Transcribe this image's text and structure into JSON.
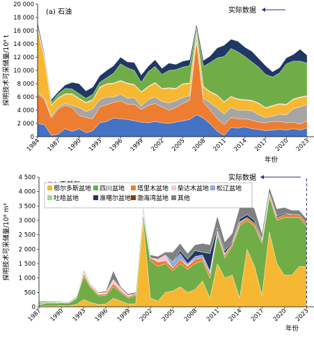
{
  "chart_data": [
    {
      "type": "area",
      "stacked": true,
      "title": "(a) 石油",
      "xlabel": "年份",
      "ylabel": "探明技术可采储量/10⁴ t",
      "x": [
        1984,
        1985,
        1986,
        1987,
        1988,
        1989,
        1990,
        1991,
        1992,
        1993,
        1994,
        1995,
        1996,
        1997,
        1998,
        1999,
        2000,
        2001,
        2002,
        2003,
        2004,
        2005,
        2006,
        2007,
        2008,
        2009,
        2010,
        2011,
        2012,
        2013,
        2014,
        2015,
        2016,
        2017,
        2018,
        2019,
        2020,
        2021,
        2022,
        2023
      ],
      "x_ticks": [
        "1984",
        "1987",
        "1990",
        "1993",
        "1996",
        "1999",
        "2002",
        "2005",
        "2008",
        "2011",
        "2014",
        "2017",
        "2020",
        "2023"
      ],
      "y_ticks": [
        "0",
        "2 000",
        "4 000",
        "6 000",
        "8 000",
        "10 000",
        "12 000",
        "14 000",
        "16 000",
        "18 000",
        "20 000"
      ],
      "ylim": [
        0,
        20000
      ],
      "xlim": [
        1984,
        2024
      ],
      "annotation": "实际数据",
      "series": [
        {
          "color": "#4472c4",
          "values": [
            2000,
            1800,
            200,
            400,
            1200,
            800,
            1200,
            600,
            900,
            2100,
            2300,
            2800,
            2700,
            2600,
            2400,
            2200,
            2100,
            2300,
            2100,
            2000,
            2200,
            2400,
            2600,
            3300,
            2800,
            1900,
            800,
            200,
            1400,
            1300,
            1500,
            1200,
            1100,
            900,
            1000,
            1100,
            1000,
            1200,
            1000,
            1300
          ]
        },
        {
          "color": "#ed7d31",
          "values": [
            4500,
            3800,
            2600,
            3800,
            3500,
            3600,
            2000,
            2300,
            1800,
            2400,
            2500,
            2400,
            2700,
            2300,
            2500,
            1900,
            2600,
            2700,
            2400,
            2000,
            2200,
            2600,
            2900,
            11000,
            2400,
            2100,
            1900,
            1600,
            1500,
            1400,
            1200,
            1300,
            1100,
            1200,
            1300,
            1200,
            1100,
            1000,
            900,
            1100
          ]
        },
        {
          "color": "#a5a5a5",
          "values": [
            200,
            200,
            300,
            300,
            300,
            300,
            1200,
            900,
            1500,
            1100,
            1200,
            800,
            1000,
            900,
            1000,
            500,
            900,
            1000,
            800,
            1100,
            1000,
            900,
            700,
            800,
            600,
            1100,
            1600,
            1600,
            1500,
            1300,
            1300,
            1400,
            1100,
            800,
            800,
            1100,
            1200,
            2000,
            2600,
            2400
          ]
        },
        {
          "color": "#f6b832",
          "values": [
            9500,
            6000,
            1600,
            1300,
            1400,
            1700,
            1300,
            1300,
            1300,
            1800,
            1900,
            2000,
            2000,
            2200,
            1900,
            2100,
            1900,
            2100,
            1900,
            2200,
            1800,
            2000,
            1800,
            600,
            1700,
            1600,
            1900,
            1800,
            1600,
            1600,
            1500,
            1500,
            1700,
            1400,
            1500,
            1500,
            1500,
            1400,
            1400,
            1300
          ]
        },
        {
          "color": "#f4c7d9",
          "values": [
            200,
            100,
            100,
            100,
            100,
            100,
            100,
            100,
            100,
            100,
            100,
            100,
            100,
            100,
            100,
            100,
            100,
            100,
            100,
            100,
            100,
            100,
            100,
            100,
            100,
            100,
            100,
            100,
            100,
            100,
            100,
            100,
            100,
            100,
            100,
            100,
            100,
            100,
            100,
            100
          ]
        },
        {
          "color": "#70ad47",
          "values": [
            300,
            200,
            400,
            600,
            800,
            700,
            700,
            600,
            800,
            700,
            900,
            1500,
            2500,
            2300,
            2100,
            1400,
            2200,
            2400,
            2100,
            2600,
            2800,
            2500,
            2600,
            600,
            3000,
            4400,
            5600,
            6800,
            7200,
            7100,
            6500,
            5800,
            5400,
            5000,
            4300,
            4600,
            6100,
            5700,
            5400,
            4900
          ]
        },
        {
          "color": "#1f3864",
          "values": [
            600,
            400,
            400,
            300,
            500,
            1000,
            1500,
            1100,
            1100,
            1000,
            1100,
            1100,
            1000,
            900,
            1200,
            1100,
            800,
            1000,
            900,
            1100,
            800,
            900,
            900,
            600,
            900,
            1000,
            1500,
            1700,
            1400,
            1600,
            1400,
            1600,
            1300,
            1300,
            800,
            800,
            900,
            1000,
            1800,
            1200
          ]
        }
      ]
    },
    {
      "type": "area",
      "stacked": true,
      "title": "(b) 天然气",
      "xlabel": "年份",
      "ylabel": "探明技术可采储量/10⁸ m³",
      "x": [
        1987,
        1988,
        1989,
        1990,
        1991,
        1992,
        1993,
        1994,
        1995,
        1996,
        1997,
        1998,
        1999,
        2000,
        2001,
        2002,
        2003,
        2004,
        2005,
        2006,
        2007,
        2008,
        2009,
        2010,
        2011,
        2012,
        2013,
        2014,
        2015,
        2016,
        2017,
        2018,
        2019,
        2020,
        2021,
        2022,
        2023
      ],
      "x_ticks": [
        "1987",
        "1990",
        "1993",
        "1996",
        "1999",
        "2002",
        "2005",
        "2008",
        "2011",
        "2014",
        "2017",
        "2020",
        "2023"
      ],
      "y_ticks": [
        "0",
        "500",
        "1 000",
        "1 500",
        "2 000",
        "2 500",
        "3 000",
        "3 500",
        "4 000",
        "4 500"
      ],
      "ylim": [
        0,
        4500
      ],
      "xlim": [
        1987,
        2024
      ],
      "annotation": "实际数据",
      "legend": [
        {
          "name": "鄂尔多斯盆地",
          "color": "#f6b832"
        },
        {
          "name": "四川盆地",
          "color": "#70ad47"
        },
        {
          "name": "塔里木盆地",
          "color": "#ed7d31"
        },
        {
          "name": "柴达木盆地",
          "color": "#f4c7d9"
        },
        {
          "name": "松辽盆地",
          "color": "#8faadc"
        },
        {
          "name": "吐哈盆地",
          "color": "#a9d18e"
        },
        {
          "name": "准噶尔盆地",
          "color": "#1f3864"
        },
        {
          "name": "渤海湾盆地",
          "color": "#833c0b"
        },
        {
          "name": "其他",
          "color": "#808080"
        }
      ],
      "series": [
        {
          "name": "鄂尔多斯盆地",
          "color": "#f6b832",
          "values": [
            20,
            30,
            30,
            40,
            30,
            80,
            250,
            150,
            80,
            100,
            300,
            200,
            100,
            100,
            3000,
            300,
            200,
            500,
            550,
            700,
            500,
            600,
            900,
            300,
            1500,
            1000,
            1100,
            300,
            2000,
            1400,
            400,
            2600,
            1500,
            1100,
            1100,
            1400,
            1400
          ]
        },
        {
          "name": "四川盆地",
          "color": "#70ad47",
          "values": [
            50,
            100,
            100,
            100,
            100,
            200,
            800,
            500,
            300,
            300,
            400,
            300,
            200,
            300,
            200,
            1300,
            1200,
            1000,
            700,
            800,
            800,
            900,
            700,
            700,
            1000,
            700,
            1000,
            2500,
            1000,
            1400,
            1800,
            1200,
            1500,
            2000,
            2000,
            1700,
            1400
          ]
        },
        {
          "name": "塔里木盆地",
          "color": "#ed7d31",
          "values": [
            0,
            0,
            0,
            0,
            0,
            0,
            100,
            50,
            50,
            50,
            100,
            50,
            50,
            50,
            100,
            100,
            150,
            100,
            100,
            150,
            100,
            150,
            100,
            150,
            100,
            100,
            100,
            100,
            100,
            100,
            100,
            100,
            100,
            100,
            100,
            100,
            100
          ]
        },
        {
          "name": "柴达木盆地",
          "color": "#f4c7d9",
          "values": [
            0,
            0,
            0,
            0,
            0,
            0,
            20,
            20,
            20,
            50,
            150,
            100,
            50,
            0,
            0,
            0,
            100,
            200,
            0,
            0,
            50,
            0,
            0,
            0,
            0,
            0,
            0,
            0,
            0,
            0,
            0,
            0,
            0,
            0,
            0,
            0,
            0
          ]
        },
        {
          "name": "松辽盆地",
          "color": "#8faadc",
          "values": [
            0,
            0,
            0,
            0,
            0,
            0,
            0,
            0,
            0,
            0,
            0,
            0,
            0,
            0,
            0,
            0,
            0,
            0,
            200,
            200,
            50,
            100,
            100,
            100,
            50,
            50,
            0,
            50,
            0,
            0,
            0,
            0,
            0,
            0,
            0,
            0,
            0
          ]
        },
        {
          "name": "吐哈盆地",
          "color": "#a9d18e",
          "values": [
            100,
            50,
            50,
            20,
            20,
            50,
            50,
            20,
            20,
            0,
            0,
            0,
            0,
            0,
            0,
            0,
            0,
            0,
            0,
            0,
            0,
            0,
            0,
            0,
            0,
            0,
            0,
            0,
            0,
            0,
            0,
            0,
            0,
            0,
            0,
            0,
            0
          ]
        },
        {
          "name": "准噶尔盆地",
          "color": "#1f3864",
          "values": [
            0,
            0,
            0,
            0,
            0,
            0,
            0,
            0,
            0,
            0,
            0,
            0,
            0,
            0,
            0,
            0,
            0,
            0,
            0,
            100,
            150,
            200,
            100,
            600,
            100,
            100,
            50,
            100,
            100,
            100,
            50,
            50,
            50,
            50,
            0,
            0,
            0
          ]
        },
        {
          "name": "渤海湾盆地",
          "color": "#833c0b",
          "values": [
            0,
            0,
            0,
            0,
            0,
            0,
            0,
            0,
            0,
            0,
            0,
            0,
            0,
            0,
            100,
            0,
            0,
            0,
            0,
            0,
            0,
            0,
            0,
            0,
            0,
            0,
            0,
            0,
            0,
            0,
            0,
            0,
            0,
            0,
            0,
            0,
            0
          ]
        },
        {
          "name": "其他",
          "color": "#808080",
          "values": [
            30,
            20,
            20,
            20,
            20,
            20,
            50,
            30,
            30,
            50,
            300,
            50,
            50,
            50,
            100,
            100,
            100,
            100,
            350,
            250,
            200,
            200,
            300,
            300,
            400,
            300,
            300,
            400,
            400,
            400,
            200,
            200,
            250,
            200,
            150,
            150,
            150
          ]
        }
      ]
    }
  ]
}
